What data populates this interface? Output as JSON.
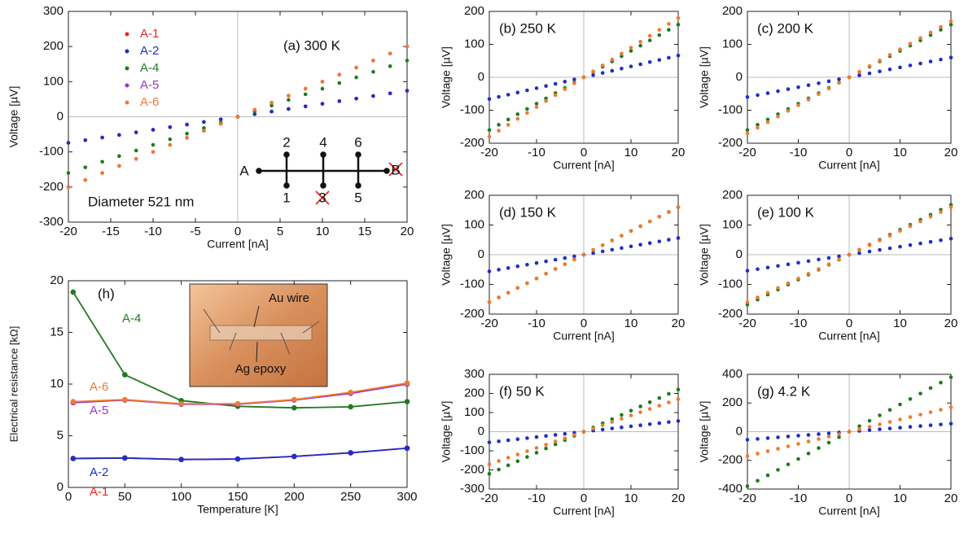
{
  "chart_data": [
    {
      "type": "scatter",
      "title": "(a) 300 K",
      "x_label": "Current [nA]",
      "y_label": "Voltage [µV]",
      "x": [
        -20,
        -18,
        -16,
        -14,
        -12,
        -10,
        -8,
        -6,
        -4,
        -2,
        0,
        2,
        4,
        6,
        8,
        10,
        12,
        14,
        16,
        18,
        20
      ],
      "xlim": [
        -20,
        20
      ],
      "xticks": [
        -20,
        -15,
        -10,
        -5,
        0,
        5,
        10,
        15,
        20
      ],
      "ylim": [
        -300,
        300
      ],
      "yticks": [
        -300,
        -200,
        -100,
        0,
        100,
        200,
        300
      ],
      "legend": "upper left",
      "annotations": [
        "Diameter 521 nm",
        "A",
        "B",
        "1",
        "2",
        "3",
        "4",
        "5",
        "6"
      ],
      "series": [
        {
          "name": "A-1",
          "color": "#e8261f",
          "values": [
            -74,
            -66.6,
            -59.2,
            -51.8,
            -44.4,
            -37,
            -29.6,
            -22.2,
            -14.8,
            -7.4,
            0,
            7.4,
            14.8,
            22.2,
            29.6,
            37,
            44.4,
            51.8,
            59.2,
            66.6,
            74
          ]
        },
        {
          "name": "A-2",
          "color": "#1f2fc4",
          "values": [
            -74,
            -66.6,
            -59.2,
            -51.8,
            -44.4,
            -37,
            -29.6,
            -22.2,
            -14.8,
            -7.4,
            0,
            7.4,
            14.8,
            22.2,
            29.6,
            37,
            44.4,
            51.8,
            59.2,
            66.6,
            74
          ]
        },
        {
          "name": "A-4",
          "color": "#1f7a1f",
          "values": [
            -160,
            -144,
            -128,
            -112,
            -96,
            -80,
            -64,
            -48,
            -32,
            -16,
            0,
            16,
            32,
            48,
            64,
            80,
            96,
            112,
            128,
            144,
            160
          ]
        },
        {
          "name": "A-5",
          "color": "#9933cc",
          "values": [
            -200,
            -180,
            -160,
            -140,
            -120,
            -100,
            -80,
            -60,
            -40,
            -20,
            0,
            20,
            40,
            60,
            80,
            100,
            120,
            140,
            160,
            180,
            200
          ]
        },
        {
          "name": "A-6",
          "color": "#f07a30",
          "values": [
            -200,
            -180,
            -160,
            -140,
            -120,
            -100,
            -80,
            -60,
            -40,
            -20,
            0,
            20,
            40,
            60,
            80,
            100,
            120,
            140,
            160,
            180,
            200
          ]
        }
      ]
    },
    {
      "type": "scatter",
      "title": "(b) 250 K",
      "x_label": "Current [nA]",
      "y_label": "Voltage [µV]",
      "x": [
        -20,
        -18,
        -16,
        -14,
        -12,
        -10,
        -8,
        -6,
        -4,
        -2,
        0,
        2,
        4,
        6,
        8,
        10,
        12,
        14,
        16,
        18,
        20
      ],
      "xlim": [
        -20,
        20
      ],
      "xticks": [
        -20,
        -10,
        0,
        10,
        20
      ],
      "ylim": [
        -200,
        200
      ],
      "yticks": [
        -200,
        -100,
        0,
        100,
        200
      ],
      "series": [
        {
          "color": "#1f2fc4",
          "values": [
            -66,
            -59.4,
            -52.8,
            -46.2,
            -39.6,
            -33,
            -26.4,
            -19.8,
            -13.2,
            -6.6,
            0,
            6.6,
            13.2,
            19.8,
            26.4,
            33,
            39.6,
            46.2,
            52.8,
            59.4,
            66
          ]
        },
        {
          "color": "#1f7a1f",
          "values": [
            -160,
            -144,
            -128,
            -112,
            -96,
            -80,
            -64,
            -48,
            -32,
            -16,
            0,
            16,
            32,
            48,
            64,
            80,
            96,
            112,
            128,
            144,
            160
          ]
        },
        {
          "color": "#f07a30",
          "values": [
            -180,
            -162,
            -144,
            -126,
            -108,
            -90,
            -72,
            -54,
            -36,
            -18,
            0,
            18,
            36,
            54,
            72,
            90,
            108,
            126,
            144,
            162,
            180
          ]
        }
      ]
    },
    {
      "type": "scatter",
      "title": "(c) 200 K",
      "x_label": "Current [nA]",
      "y_label": "Voltage [µV]",
      "x": [
        -20,
        -18,
        -16,
        -14,
        -12,
        -10,
        -8,
        -6,
        -4,
        -2,
        0,
        2,
        4,
        6,
        8,
        10,
        12,
        14,
        16,
        18,
        20
      ],
      "xlim": [
        -20,
        20
      ],
      "xticks": [
        -20,
        -10,
        0,
        10,
        20
      ],
      "ylim": [
        -200,
        200
      ],
      "yticks": [
        -200,
        -100,
        0,
        100,
        200
      ],
      "series": [
        {
          "color": "#1f2fc4",
          "values": [
            -60,
            -54,
            -48,
            -42,
            -36,
            -30,
            -24,
            -18,
            -12,
            -6,
            0,
            6,
            12,
            18,
            24,
            30,
            36,
            42,
            48,
            54,
            60
          ]
        },
        {
          "color": "#1f7a1f",
          "values": [
            -160,
            -144,
            -128,
            -112,
            -96,
            -80,
            -64,
            -48,
            -32,
            -16,
            0,
            16,
            32,
            48,
            64,
            80,
            96,
            112,
            128,
            144,
            160
          ]
        },
        {
          "color": "#f07a30",
          "values": [
            -170,
            -153,
            -136,
            -119,
            -102,
            -85,
            -68,
            -51,
            -34,
            -17,
            0,
            17,
            34,
            51,
            68,
            85,
            102,
            119,
            136,
            153,
            170
          ]
        }
      ]
    },
    {
      "type": "scatter",
      "title": "(d) 150 K",
      "x_label": "Current [nA]",
      "y_label": "Voltage [µV]",
      "x": [
        -20,
        -18,
        -16,
        -14,
        -12,
        -10,
        -8,
        -6,
        -4,
        -2,
        0,
        2,
        4,
        6,
        8,
        10,
        12,
        14,
        16,
        18,
        20
      ],
      "xlim": [
        -20,
        20
      ],
      "xticks": [
        -20,
        -10,
        0,
        10,
        20
      ],
      "ylim": [
        -200,
        200
      ],
      "yticks": [
        -200,
        -100,
        0,
        100,
        200
      ],
      "series": [
        {
          "color": "#1f2fc4",
          "values": [
            -56,
            -50.4,
            -44.8,
            -39.2,
            -33.6,
            -28,
            -22.4,
            -16.8,
            -11.2,
            -5.6,
            0,
            5.6,
            11.2,
            16.8,
            22.4,
            28,
            33.6,
            39.2,
            44.8,
            50.4,
            56
          ]
        },
        {
          "color": "#1f7a1f",
          "values": [
            -160,
            -144,
            -128,
            -112,
            -96,
            -80,
            -64,
            -48,
            -32,
            -16,
            0,
            16,
            32,
            48,
            64,
            80,
            96,
            112,
            128,
            144,
            160
          ]
        },
        {
          "color": "#f07a30",
          "values": [
            -160,
            -144,
            -128,
            -112,
            -96,
            -80,
            -64,
            -48,
            -32,
            -16,
            0,
            16,
            32,
            48,
            64,
            80,
            96,
            112,
            128,
            144,
            160
          ]
        }
      ]
    },
    {
      "type": "scatter",
      "title": "(e) 100 K",
      "x_label": "Current [nA]",
      "y_label": "Voltage [µV]",
      "x": [
        -20,
        -18,
        -16,
        -14,
        -12,
        -10,
        -8,
        -6,
        -4,
        -2,
        0,
        2,
        4,
        6,
        8,
        10,
        12,
        14,
        16,
        18,
        20
      ],
      "xlim": [
        -20,
        20
      ],
      "xticks": [
        -20,
        -10,
        0,
        10,
        20
      ],
      "ylim": [
        -200,
        200
      ],
      "yticks": [
        -200,
        -100,
        0,
        100,
        200
      ],
      "series": [
        {
          "color": "#1f2fc4",
          "values": [
            -54,
            -48.6,
            -43.2,
            -37.8,
            -32.4,
            -27,
            -21.6,
            -16.2,
            -10.8,
            -5.4,
            0,
            5.4,
            10.8,
            16.2,
            21.6,
            27,
            32.4,
            37.8,
            43.2,
            48.6,
            54
          ]
        },
        {
          "color": "#1f7a1f",
          "values": [
            -168,
            -151.2,
            -134.4,
            -117.6,
            -100.8,
            -84,
            -67.2,
            -50.4,
            -33.6,
            -16.8,
            0,
            16.8,
            33.6,
            50.4,
            67.2,
            84,
            100.8,
            117.6,
            134.4,
            151.2,
            168
          ]
        },
        {
          "color": "#f07a30",
          "values": [
            -160,
            -144,
            -128,
            -112,
            -96,
            -80,
            -64,
            -48,
            -32,
            -16,
            0,
            16,
            32,
            48,
            64,
            80,
            96,
            112,
            128,
            144,
            160
          ]
        }
      ]
    },
    {
      "type": "scatter",
      "title": "(f) 50 K",
      "x_label": "Current [nA]",
      "y_label": "Voltage [µV]",
      "x": [
        -20,
        -18,
        -16,
        -14,
        -12,
        -10,
        -8,
        -6,
        -4,
        -2,
        0,
        2,
        4,
        6,
        8,
        10,
        12,
        14,
        16,
        18,
        20
      ],
      "xlim": [
        -20,
        20
      ],
      "xticks": [
        -20,
        -10,
        0,
        10,
        20
      ],
      "ylim": [
        -300,
        300
      ],
      "yticks": [
        -300,
        -200,
        -100,
        0,
        100,
        200,
        300
      ],
      "series": [
        {
          "color": "#1f2fc4",
          "values": [
            -56,
            -50.4,
            -44.8,
            -39.2,
            -33.6,
            -28,
            -22.4,
            -16.8,
            -11.2,
            -5.6,
            0,
            5.6,
            11.2,
            16.8,
            22.4,
            28,
            33.6,
            39.2,
            44.8,
            50.4,
            56
          ]
        },
        {
          "color": "#1f7a1f",
          "values": [
            -220,
            -198,
            -176,
            -154,
            -132,
            -110,
            -88,
            -66,
            -44,
            -22,
            0,
            22,
            44,
            66,
            88,
            110,
            132,
            154,
            176,
            198,
            220
          ]
        },
        {
          "color": "#f07a30",
          "values": [
            -170,
            -153,
            -136,
            -119,
            -102,
            -85,
            -68,
            -51,
            -34,
            -17,
            0,
            17,
            34,
            51,
            68,
            85,
            102,
            119,
            136,
            153,
            170
          ]
        }
      ]
    },
    {
      "type": "scatter",
      "title": "(g) 4.2 K",
      "x_label": "Current [nA]",
      "y_label": "Voltage [µV]",
      "x": [
        -20,
        -18,
        -16,
        -14,
        -12,
        -10,
        -8,
        -6,
        -4,
        -2,
        0,
        2,
        4,
        6,
        8,
        10,
        12,
        14,
        16,
        18,
        20
      ],
      "xlim": [
        -20,
        20
      ],
      "xticks": [
        -20,
        -10,
        0,
        10,
        20
      ],
      "ylim": [
        -400,
        400
      ],
      "yticks": [
        -400,
        -200,
        0,
        200,
        400
      ],
      "series": [
        {
          "color": "#1f2fc4",
          "values": [
            -56,
            -50.4,
            -44.8,
            -39.2,
            -33.6,
            -28,
            -22.4,
            -16.8,
            -11.2,
            -5.6,
            0,
            5.6,
            11.2,
            16.8,
            22.4,
            28,
            33.6,
            39.2,
            44.8,
            50.4,
            56
          ]
        },
        {
          "color": "#1f7a1f",
          "values": [
            -380,
            -342,
            -304,
            -266,
            -228,
            -190,
            -152,
            -114,
            -76,
            -38,
            0,
            38,
            76,
            114,
            152,
            190,
            228,
            266,
            304,
            342,
            380
          ]
        },
        {
          "color": "#f07a30",
          "values": [
            -170,
            -153,
            -136,
            -119,
            -102,
            -85,
            -68,
            -51,
            -34,
            -17,
            0,
            17,
            34,
            51,
            68,
            85,
            102,
            119,
            136,
            153,
            170
          ]
        }
      ]
    },
    {
      "type": "line",
      "title": "(h)",
      "x_label": "Temperature [K]",
      "y_label": "Electrical resistance [kΩ]",
      "x": [
        4.2,
        50,
        100,
        150,
        200,
        250,
        300
      ],
      "xlim": [
        0,
        300
      ],
      "xticks": [
        0,
        50,
        100,
        150,
        200,
        250,
        300
      ],
      "ylim": [
        0,
        20
      ],
      "yticks": [
        0,
        5,
        10,
        15,
        20
      ],
      "annotations": [
        "Au wire",
        "Ag epoxy"
      ],
      "series": [
        {
          "name": "A-1",
          "color": "#e8261f",
          "values": [
            2.8,
            2.85,
            2.7,
            2.75,
            3.0,
            3.35,
            3.8
          ]
        },
        {
          "name": "A-2",
          "color": "#1f2fc4",
          "values": [
            2.8,
            2.85,
            2.7,
            2.75,
            3.0,
            3.35,
            3.8
          ]
        },
        {
          "name": "A-4",
          "color": "#1f7a1f",
          "values": [
            18.9,
            10.9,
            8.4,
            7.85,
            7.7,
            7.8,
            8.3
          ]
        },
        {
          "name": "A-5",
          "color": "#9933cc",
          "values": [
            8.2,
            8.45,
            8.05,
            8.05,
            8.45,
            9.1,
            10.0
          ]
        },
        {
          "name": "A-6",
          "color": "#f07a30",
          "values": [
            8.3,
            8.5,
            8.1,
            8.1,
            8.5,
            9.2,
            10.1
          ]
        }
      ]
    }
  ]
}
